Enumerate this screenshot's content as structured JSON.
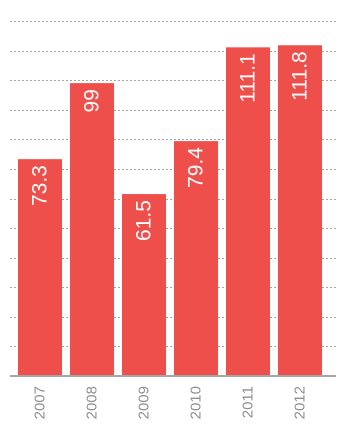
{
  "chart_data": {
    "type": "bar",
    "categories": [
      "2007",
      "2008",
      "2009",
      "2010",
      "2011",
      "2012"
    ],
    "values": [
      73.3,
      99,
      61.5,
      79.4,
      111.1,
      111.8
    ],
    "value_labels": [
      "73.3",
      "99",
      "61.5",
      "79.4",
      "111.1",
      "111.8"
    ],
    "title": "",
    "xlabel": "",
    "ylabel": "",
    "ylim": [
      0,
      120
    ],
    "grid": true,
    "legend": "none",
    "colors": {
      "bar": "#ef4f4b",
      "grid": "#a6a6a6",
      "tick_text": "#8f8f8f",
      "bar_text": "#ffffff"
    }
  }
}
